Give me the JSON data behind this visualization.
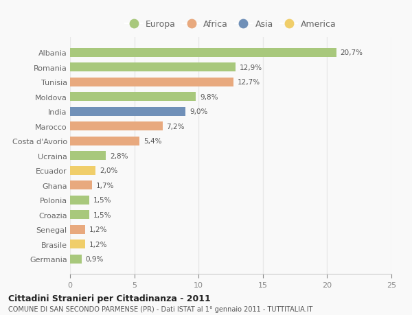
{
  "countries": [
    "Albania",
    "Romania",
    "Tunisia",
    "Moldova",
    "India",
    "Marocco",
    "Costa d'Avorio",
    "Ucraina",
    "Ecuador",
    "Ghana",
    "Polonia",
    "Croazia",
    "Senegal",
    "Brasile",
    "Germania"
  ],
  "values": [
    20.7,
    12.9,
    12.7,
    9.8,
    9.0,
    7.2,
    5.4,
    2.8,
    2.0,
    1.7,
    1.5,
    1.5,
    1.2,
    1.2,
    0.9
  ],
  "labels": [
    "20,7%",
    "12,9%",
    "12,7%",
    "9,8%",
    "9,0%",
    "7,2%",
    "5,4%",
    "2,8%",
    "2,0%",
    "1,7%",
    "1,5%",
    "1,5%",
    "1,2%",
    "1,2%",
    "0,9%"
  ],
  "continent": [
    "Europa",
    "Europa",
    "Africa",
    "Europa",
    "Asia",
    "Africa",
    "Africa",
    "Europa",
    "America",
    "Africa",
    "Europa",
    "Europa",
    "Africa",
    "America",
    "Europa"
  ],
  "colors": {
    "Europa": "#a8c87c",
    "Africa": "#e8a97e",
    "Asia": "#7090b8",
    "America": "#f0ce6a"
  },
  "legend_order": [
    "Europa",
    "Africa",
    "Asia",
    "America"
  ],
  "xlim": [
    0,
    25
  ],
  "xticks": [
    0,
    5,
    10,
    15,
    20,
    25
  ],
  "title": "Cittadini Stranieri per Cittadinanza - 2011",
  "subtitle": "COMUNE DI SAN SECONDO PARMENSE (PR) - Dati ISTAT al 1° gennaio 2011 - TUTTITALIA.IT",
  "background_color": "#f9f9f9",
  "grid_color": "#e8e8e8",
  "bar_height": 0.6
}
